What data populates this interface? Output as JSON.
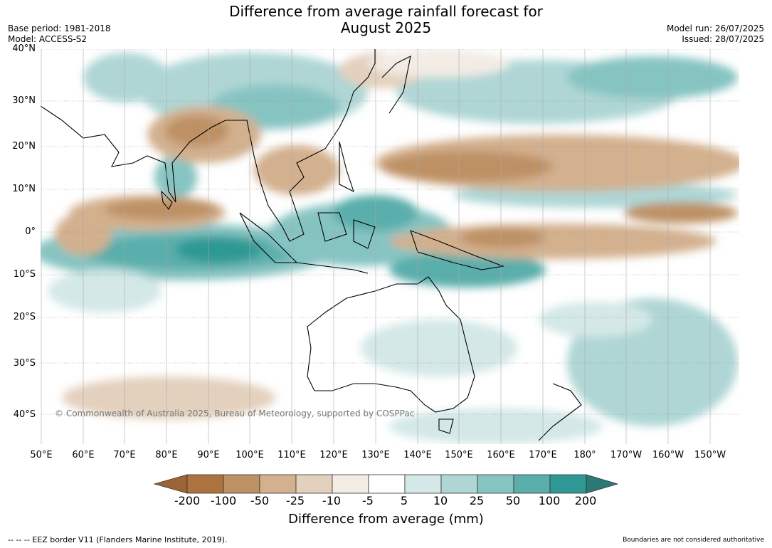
{
  "title_line1": "Difference from average rainfall forecast for",
  "title_line2": "August 2025",
  "meta_left": {
    "base_period": "Base period: 1981-2018",
    "model": "Model: ACCESS-S2"
  },
  "meta_right": {
    "model_run": "Model run: 26/07/2025",
    "issued": "Issued: 28/07/2025"
  },
  "latitudes": [
    "40°N",
    "30°N",
    "20°N",
    "10°N",
    "0°",
    "10°S",
    "20°S",
    "30°S",
    "40°S"
  ],
  "longitudes": [
    "50°E",
    "60°E",
    "70°E",
    "80°E",
    "90°E",
    "100°E",
    "110°E",
    "120°E",
    "130°E",
    "140°E",
    "150°E",
    "160°E",
    "170°E",
    "180°",
    "170°W",
    "160°W",
    "150°W"
  ],
  "copyright": "© Commonwealth of Australia 2025, Bureau of Meteorology, supported by COSPPac",
  "colorbar": {
    "labels": [
      "-200",
      "-100",
      "-50",
      "-25",
      "-10",
      "-5",
      "5",
      "10",
      "25",
      "50",
      "100",
      "200"
    ],
    "colors": [
      "#9c6434",
      "#ad733f",
      "#be9165",
      "#d3b08e",
      "#e3d0bd",
      "#f2ece5",
      "#ffffff",
      "#d3e8e7",
      "#afd6d5",
      "#86c4c2",
      "#5aaeab",
      "#2e9894",
      "#2b7974"
    ],
    "title": "Difference from average (mm)"
  },
  "footer_left": "-- -- -- EEZ border V11 (Flanders Marine Institute, 2019).",
  "footer_right": "Boundaries are not considered authoritative"
}
